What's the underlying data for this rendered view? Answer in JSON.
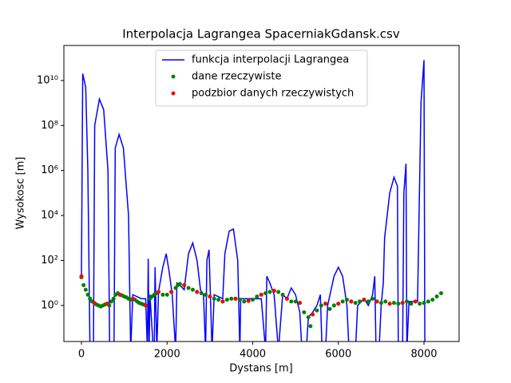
{
  "chart_data": {
    "type": "line",
    "title": "Interpolacja Lagrangea SpacerniakGdansk.csv",
    "xlabel": "Dystans [m]",
    "ylabel": "Wysokosc [m]",
    "xlim": [
      -410,
      8820
    ],
    "ylim": [
      0.025,
      360000000000
    ],
    "yscale": "log",
    "xticks": [
      0,
      2000,
      4000,
      6000,
      8000
    ],
    "yticks": [
      {
        "value": 1,
        "label": "10⁰"
      },
      {
        "value": 100,
        "label": "10²"
      },
      {
        "value": 10000,
        "label": "10⁴"
      },
      {
        "value": 1000000,
        "label": "10⁶"
      },
      {
        "value": 100000000,
        "label": "10⁸"
      },
      {
        "value": 10000000000,
        "label": "10¹⁰"
      }
    ],
    "legend": "upper center",
    "series": [
      {
        "name": "funkcja interpolacji Lagrangea",
        "type": "line",
        "color": "#0000ff",
        "x": [
          0,
          30,
          100,
          150,
          200,
          280,
          310,
          420,
          520,
          620,
          660,
          760,
          790,
          880,
          980,
          1100,
          1150,
          1200,
          1400,
          1500,
          1540,
          1560,
          1580,
          1600,
          1680,
          1700,
          1720,
          1760,
          1800,
          1900,
          1980,
          2050,
          2120,
          2200,
          2230,
          2300,
          2400,
          2500,
          2600,
          2700,
          2780,
          2850,
          2900,
          2930,
          2980,
          3050,
          3100,
          3300,
          3350,
          3450,
          3550,
          3650,
          3700,
          3720,
          4000,
          4200,
          4300,
          4330,
          4400,
          4500,
          4600,
          4700,
          4800,
          4900,
          5000,
          5100,
          5150,
          5250,
          5300,
          5400,
          5500,
          5580,
          5620,
          5700,
          5750,
          5900,
          6000,
          6100,
          6200,
          6250,
          6400,
          6450,
          6600,
          6700,
          6800,
          6850,
          6880,
          6950,
          7000,
          7050,
          7080,
          7200,
          7300,
          7380,
          7400,
          7500,
          7530,
          7580,
          7600,
          7650,
          7850,
          7930,
          8000,
          8020
        ],
        "values": [
          20,
          20000000000,
          5000000000,
          1000000,
          0.01,
          0.01,
          100000000,
          1500000000,
          500000000,
          1000000,
          0.01,
          0.01,
          10000000,
          40000000,
          10000000,
          10000,
          0.01,
          3,
          2,
          2,
          0.01,
          120,
          0.01,
          3,
          0.01,
          0.01,
          50,
          0.01,
          4,
          50,
          200,
          30,
          3,
          0.01,
          10,
          8,
          5,
          200,
          600,
          100,
          5,
          3,
          0.01,
          100,
          300,
          0.01,
          3,
          2,
          200,
          2000,
          2500,
          100,
          0.01,
          2,
          2,
          2,
          0.01,
          20,
          10,
          3,
          0.01,
          3,
          2,
          6,
          3,
          0.5,
          0.01,
          0.01,
          0.3,
          0.5,
          1,
          3,
          0.01,
          0.01,
          1,
          20,
          50,
          20,
          1,
          0.01,
          0.01,
          1,
          2,
          1,
          3,
          20,
          0.01,
          0.01,
          1,
          10,
          1000,
          100000,
          500000,
          200000,
          0.01,
          0.01,
          100000,
          2000000,
          0.01,
          1.5,
          1.5,
          1000000000,
          80000000000,
          0.01
        ]
      },
      {
        "name": "dane rzeczywiste",
        "type": "scatter",
        "color": "#008000",
        "x": [
          0,
          50,
          100,
          150,
          200,
          250,
          300,
          350,
          400,
          450,
          500,
          550,
          600,
          650,
          700,
          750,
          800,
          850,
          900,
          950,
          1000,
          1050,
          1100,
          1150,
          1200,
          1250,
          1300,
          1350,
          1400,
          1450,
          1500,
          1600,
          1650,
          1700,
          1750,
          1800,
          1900,
          2000,
          2100,
          2200,
          2250,
          2300,
          2400,
          2500,
          2600,
          2700,
          2800,
          2900,
          3000,
          3100,
          3200,
          3300,
          3400,
          3500,
          3600,
          3700,
          3800,
          3900,
          4000,
          4100,
          4200,
          4300,
          4400,
          4500,
          4600,
          4700,
          4800,
          4900,
          5000,
          5100,
          5200,
          5300,
          5350,
          5400,
          5500,
          5600,
          5700,
          5800,
          5900,
          6000,
          6100,
          6200,
          6300,
          6400,
          6500,
          6600,
          6700,
          6800,
          6900,
          7000,
          7100,
          7200,
          7300,
          7400,
          7500,
          7600,
          7700,
          7800,
          7900,
          8000,
          8100,
          8200,
          8300,
          8400
        ],
        "values": [
          18,
          8,
          5,
          3,
          2,
          1.5,
          1.3,
          1.1,
          1,
          0.9,
          1,
          1.1,
          1.2,
          1,
          1.5,
          2,
          3,
          3.5,
          3,
          2.8,
          2.5,
          2.3,
          2,
          1.8,
          2,
          1.8,
          1.5,
          1.3,
          1.2,
          1.1,
          1,
          2,
          2.5,
          3,
          3.5,
          4,
          3,
          3,
          4,
          6,
          8,
          9,
          8,
          6,
          5,
          4,
          3.5,
          3,
          2.5,
          2,
          1.8,
          1.5,
          1.8,
          2,
          2,
          1.8,
          1.5,
          1.6,
          1.8,
          2.5,
          3,
          3.5,
          4,
          4.5,
          4,
          3,
          2,
          1.5,
          1.5,
          1.3,
          0.5,
          0.3,
          0.12,
          0.4,
          0.6,
          1,
          1.2,
          0.7,
          1,
          1.2,
          1.5,
          1.8,
          1.5,
          1.3,
          1.5,
          1.8,
          1.5,
          2,
          1.5,
          1.3,
          1.5,
          1.2,
          1.3,
          1.2,
          1.3,
          1.5,
          1.2,
          1.5,
          1.2,
          1.3,
          1.5,
          1.8,
          2.5,
          3.5
        ]
      },
      {
        "name": "podzbior danych rzeczywistych",
        "type": "scatter",
        "color": "#ff0000",
        "x": [
          0,
          300,
          600,
          900,
          1200,
          1500,
          1800,
          2100,
          2400,
          2700,
          3000,
          3300,
          3600,
          3900,
          4200,
          4500,
          4800,
          5100,
          5400,
          5700,
          6000,
          6300,
          6600,
          6900,
          7200,
          7500,
          7800
        ],
        "values": [
          20,
          1.3,
          1.2,
          3,
          2,
          1,
          4,
          4,
          8,
          4,
          2.5,
          1.5,
          2,
          1.6,
          3,
          4.5,
          2,
          1.3,
          0.4,
          1.2,
          1.2,
          1.5,
          1.8,
          1.5,
          1.2,
          1.3,
          1.5
        ]
      }
    ]
  }
}
